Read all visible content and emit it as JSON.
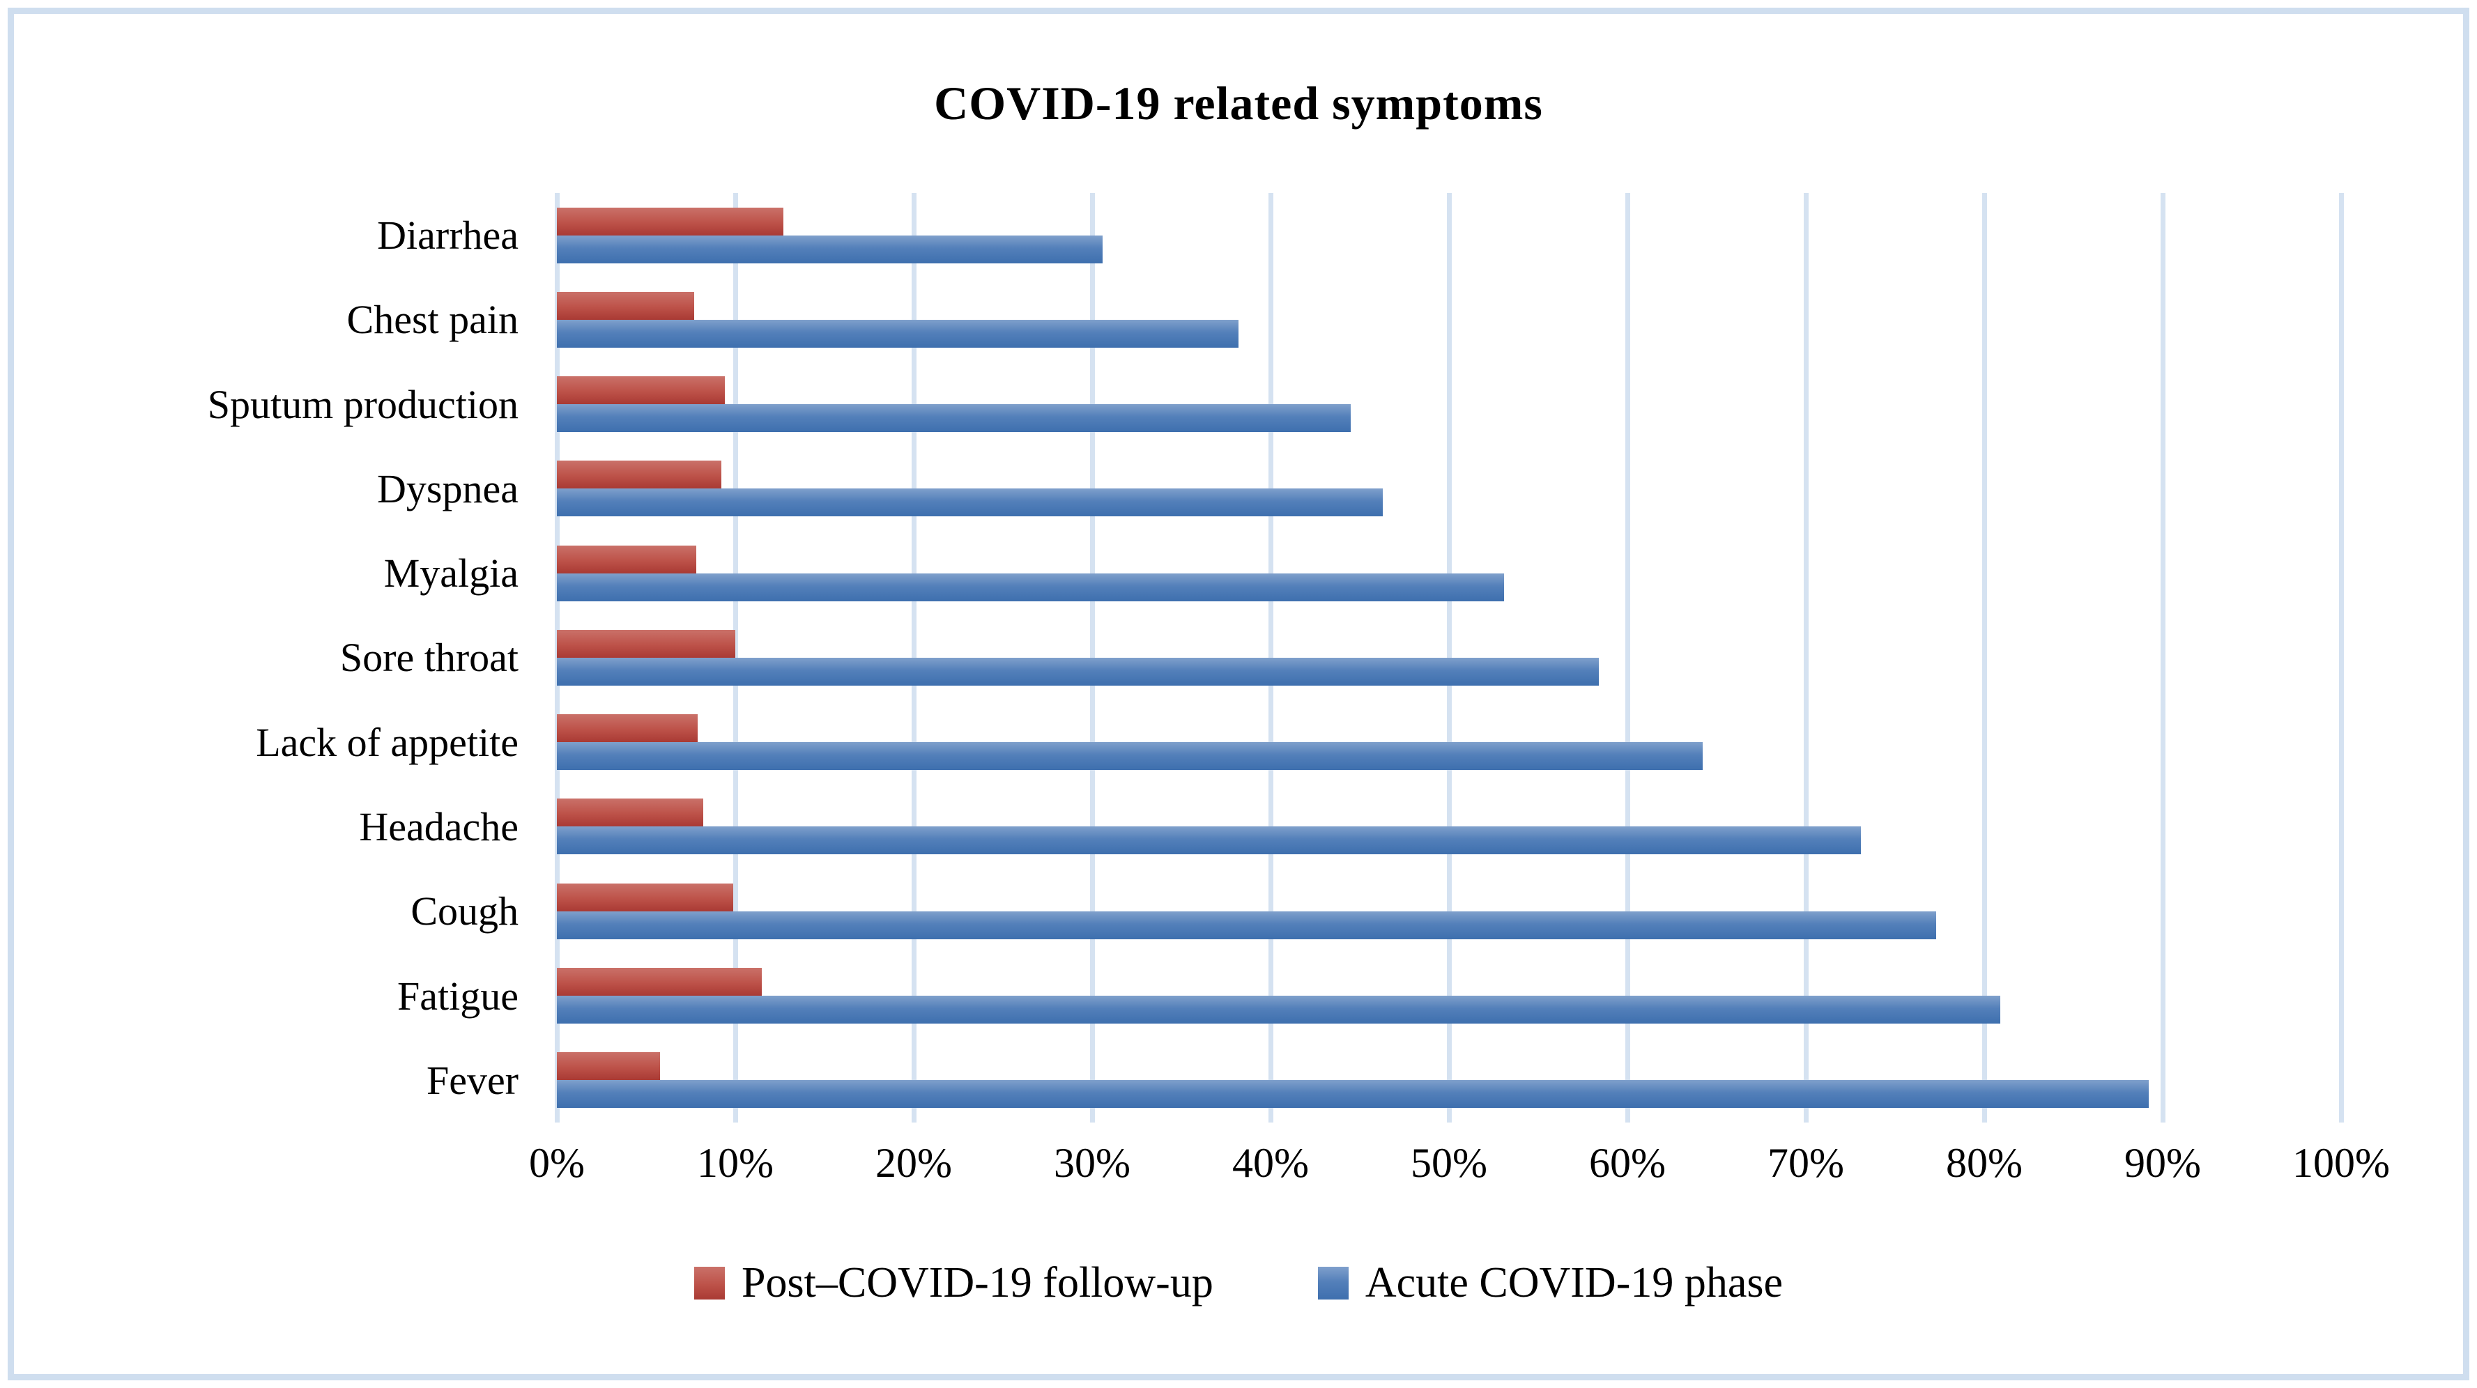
{
  "chart_data": {
    "type": "bar",
    "orientation": "horizontal",
    "title": "COVID-19 related symptoms",
    "categories": [
      "Diarrhea",
      "Chest pain",
      "Sputum production",
      "Dyspnea",
      "Myalgia",
      "Sore throat",
      "Lack of appetite",
      "Headache",
      "Cough",
      "Fatigue",
      "Fever"
    ],
    "categories_order": "top-to-bottom",
    "series": [
      {
        "name": "Post–COVID-19 follow-up",
        "color": "#c0504d",
        "values": [
          12.7,
          7.7,
          9.4,
          9.2,
          7.8,
          10.0,
          7.9,
          8.2,
          9.9,
          11.5,
          5.8
        ]
      },
      {
        "name": "Acute COVID-19 phase",
        "color": "#4f81bd",
        "values": [
          30.6,
          38.2,
          44.5,
          46.3,
          53.1,
          58.4,
          64.2,
          73.1,
          77.3,
          80.9,
          89.2
        ]
      }
    ],
    "x_ticks": [
      "0%",
      "10%",
      "20%",
      "30%",
      "40%",
      "50%",
      "60%",
      "70%",
      "80%",
      "90%",
      "100%"
    ],
    "xlim": [
      0,
      100
    ],
    "xlabel": "",
    "ylabel": "",
    "grid": true,
    "gridline_color": "#d5e2f1",
    "border_color": "#cfdeef",
    "legend_position": "bottom"
  }
}
